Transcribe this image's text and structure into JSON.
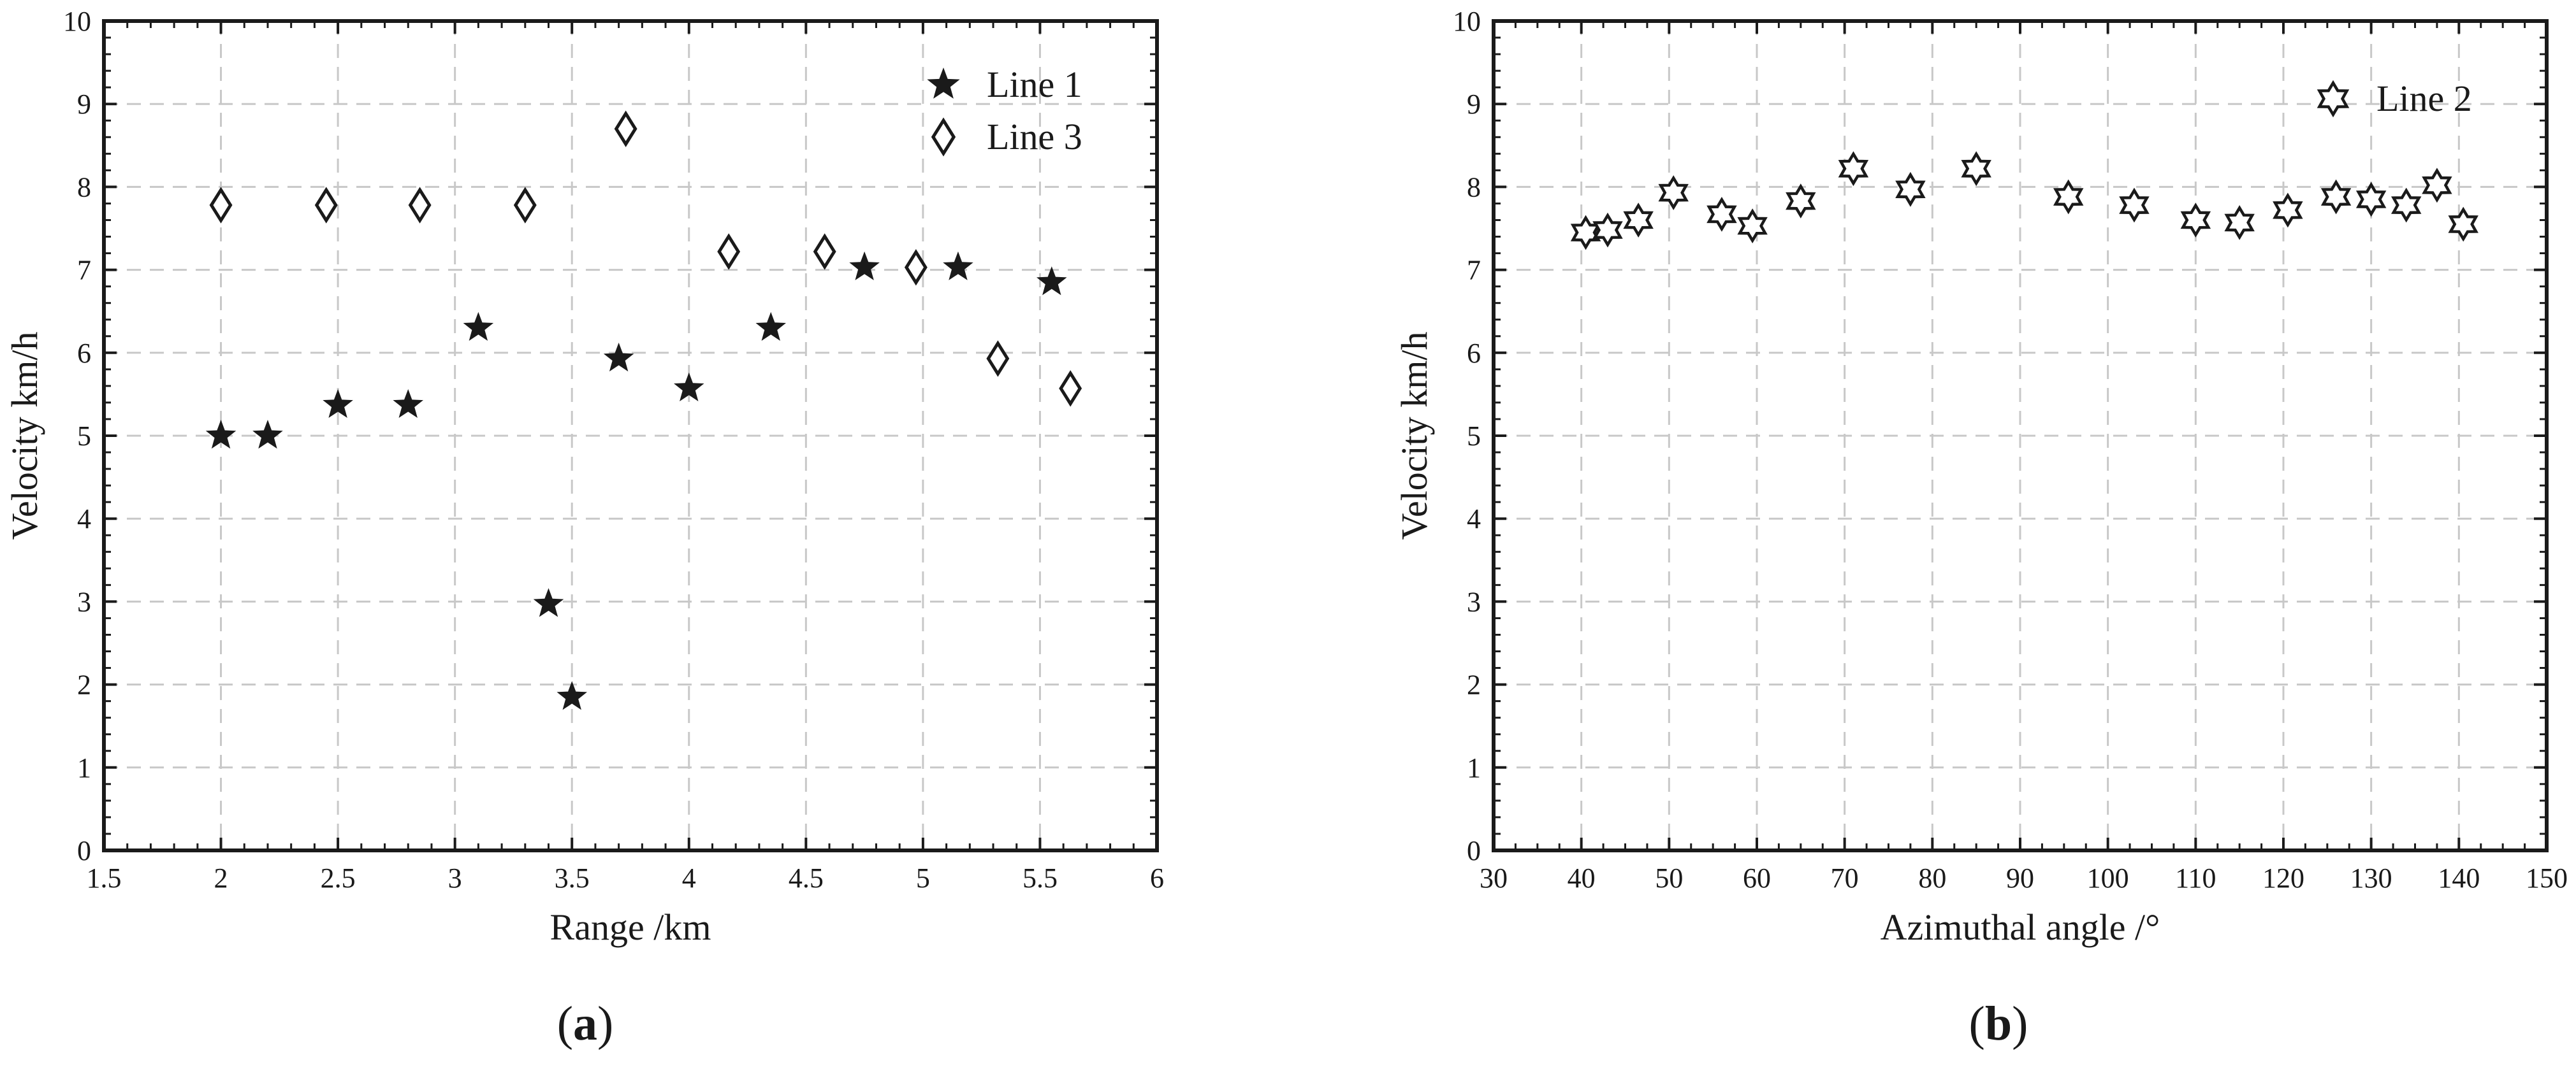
{
  "chart_data": [
    {
      "type": "scatter",
      "caption_label": "a",
      "xlabel": "Range /km",
      "ylabel": "Velocity km/h",
      "xlim": [
        1.5,
        6
      ],
      "ylim": [
        0,
        10
      ],
      "x_ticks": [
        "1.5",
        "2",
        "2.5",
        "3",
        "3.5",
        "4",
        "4.5",
        "5",
        "5.5",
        "6"
      ],
      "y_ticks": [
        "0",
        "1",
        "2",
        "3",
        "4",
        "5",
        "6",
        "7",
        "8",
        "9",
        "10"
      ],
      "grid": true,
      "legend_position": "top-right",
      "series": [
        {
          "name": "Line 1",
          "marker": "filled-star",
          "x": [
            2.0,
            2.2,
            2.5,
            2.8,
            3.1,
            3.4,
            3.5,
            3.7,
            4.0,
            4.35,
            4.75,
            5.15,
            5.55
          ],
          "y": [
            5.0,
            5.0,
            5.37,
            5.37,
            6.3,
            2.97,
            1.85,
            5.93,
            5.57,
            6.3,
            7.03,
            7.03,
            6.85
          ]
        },
        {
          "name": "Line 3",
          "marker": "open-diamond",
          "x": [
            2.0,
            2.45,
            2.85,
            3.3,
            3.73,
            4.17,
            4.58,
            4.97,
            5.32,
            5.63
          ],
          "y": [
            7.78,
            7.78,
            7.78,
            7.78,
            8.7,
            7.22,
            7.22,
            7.03,
            5.93,
            5.57
          ]
        }
      ]
    },
    {
      "type": "scatter",
      "caption_label": "b",
      "xlabel": "Azimuthal angle /°",
      "ylabel": "Velocity km/h",
      "xlim": [
        30,
        150
      ],
      "ylim": [
        0,
        10
      ],
      "x_ticks": [
        "30",
        "40",
        "50",
        "60",
        "70",
        "80",
        "90",
        "100",
        "110",
        "120",
        "130",
        "140",
        "150"
      ],
      "y_ticks": [
        "0",
        "1",
        "2",
        "3",
        "4",
        "5",
        "6",
        "7",
        "8",
        "9",
        "10"
      ],
      "grid": true,
      "legend_position": "top-right",
      "series": [
        {
          "name": "Line 2",
          "marker": "open-hexagram",
          "x": [
            40.5,
            43,
            46.5,
            50.5,
            56,
            59.5,
            65,
            71,
            77.5,
            85,
            95.5,
            103,
            110,
            115,
            120.5,
            126,
            130,
            134,
            137.5,
            140.5
          ],
          "y": [
            7.45,
            7.48,
            7.6,
            7.93,
            7.67,
            7.53,
            7.83,
            8.22,
            7.97,
            8.22,
            7.88,
            7.78,
            7.6,
            7.57,
            7.72,
            7.88,
            7.85,
            7.78,
            8.02,
            7.55
          ]
        }
      ]
    }
  ]
}
